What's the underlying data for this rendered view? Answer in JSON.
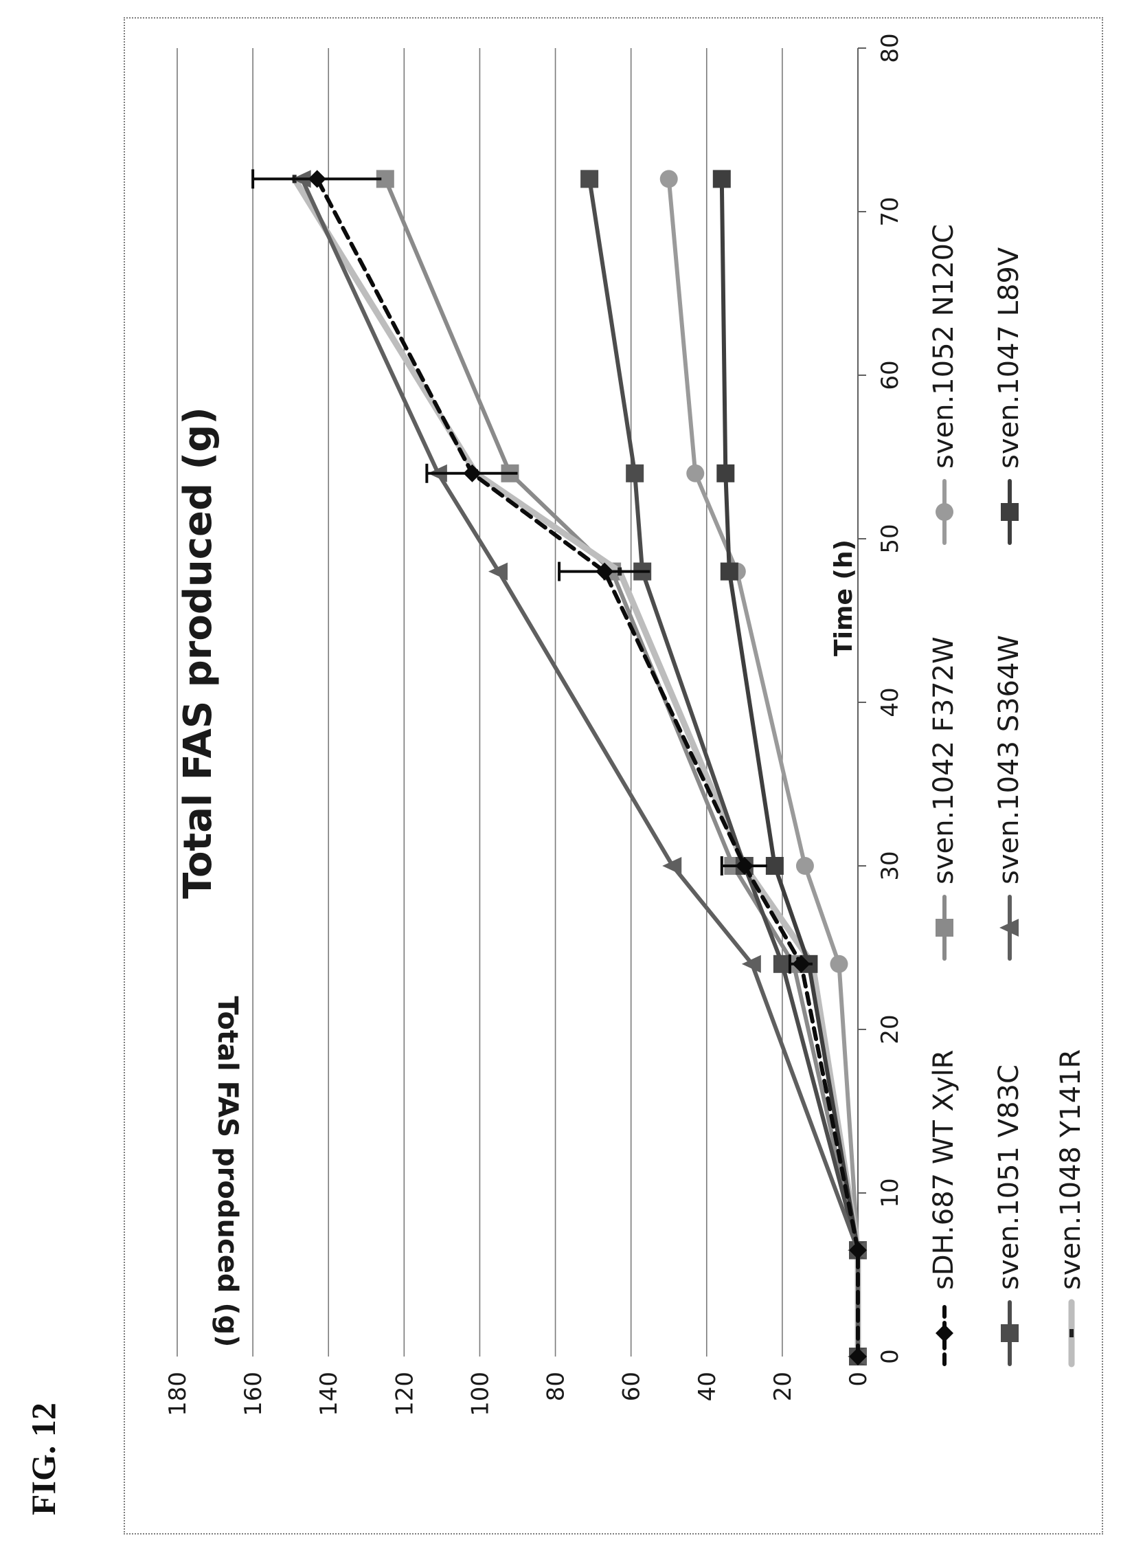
{
  "figure_label": "FIG. 12",
  "colors": {
    "gridline": "#7a7a7a",
    "axis": "#606060",
    "text": "#1a1a1a",
    "wt": "#0b0b0b",
    "v83c": "#4c4c4c",
    "y141r": "#bdbdbd",
    "f372w": "#8a8a8a",
    "s364w": "#5f5f5f",
    "n120c": "#9a9a9a",
    "l89v": "#3e3e3e"
  },
  "chart_data": {
    "type": "line",
    "title": "Total FAS produced (g)",
    "xlabel": "Time (h)",
    "ylabel": "Total FAS produced (g)",
    "xlim": [
      0,
      80
    ],
    "ylim": [
      0,
      180
    ],
    "xticks": [
      "0",
      "10",
      "20",
      "30",
      "40",
      "50",
      "60",
      "70",
      "80"
    ],
    "yticks": [
      "0",
      "20",
      "40",
      "60",
      "80",
      "100",
      "120",
      "140",
      "160",
      "180"
    ],
    "grid": "horizontal",
    "legend_position": "bottom",
    "series": [
      {
        "name": "sDH.687 WT XylR",
        "marker": "diamond",
        "dash": "dashed",
        "color": "#0b0b0b",
        "x": [
          0,
          6.5,
          24,
          30,
          48,
          54,
          72
        ],
        "y": [
          0,
          0,
          15,
          30,
          67,
          102,
          143
        ],
        "error": [
          0,
          0,
          3,
          6,
          12,
          12,
          17
        ]
      },
      {
        "name": "sven.1051 V83C",
        "marker": "square",
        "dash": "solid",
        "color": "#4c4c4c",
        "x": [
          0,
          6.5,
          24,
          30,
          48,
          54,
          72
        ],
        "y": [
          0,
          0,
          20,
          30,
          57,
          59,
          71
        ],
        "error": [
          0,
          0,
          0,
          0,
          0,
          0,
          0
        ]
      },
      {
        "name": "sven.1048 Y141R",
        "marker": "dash",
        "dash": "solid",
        "color": "#bdbdbd",
        "x": [
          0,
          6.5,
          24,
          30,
          48,
          54,
          72
        ],
        "y": [
          0,
          0,
          12,
          30,
          63,
          101,
          149
        ],
        "error": [
          0,
          0,
          0,
          0,
          0,
          0,
          0
        ]
      },
      {
        "name": "sven.1042 F372W",
        "marker": "square",
        "dash": "solid",
        "color": "#8a8a8a",
        "x": [
          0,
          6.5,
          24,
          30,
          48,
          54,
          72
        ],
        "y": [
          0,
          0,
          17,
          33,
          65,
          92,
          125
        ],
        "error": [
          0,
          0,
          0,
          0,
          0,
          0,
          0
        ]
      },
      {
        "name": "sven.1043 S364W",
        "marker": "triangle",
        "dash": "solid",
        "color": "#5f5f5f",
        "x": [
          0,
          6.5,
          24,
          30,
          48,
          54,
          72
        ],
        "y": [
          0,
          0,
          28,
          49,
          95,
          111,
          147
        ],
        "error": [
          0,
          0,
          0,
          0,
          0,
          0,
          0
        ]
      },
      {
        "name": "sven.1052 N120C",
        "marker": "circle",
        "dash": "solid",
        "color": "#9a9a9a",
        "x": [
          0,
          6.5,
          24,
          30,
          48,
          54,
          72
        ],
        "y": [
          0,
          0,
          5,
          14,
          32,
          43,
          50
        ],
        "error": [
          0,
          0,
          0,
          0,
          0,
          0,
          0
        ]
      },
      {
        "name": "sven.1047 L89V",
        "marker": "square",
        "dash": "solid",
        "color": "#3e3e3e",
        "x": [
          0,
          6.5,
          24,
          30,
          48,
          54,
          72
        ],
        "y": [
          0,
          0,
          13,
          22,
          34,
          35,
          36
        ],
        "error": [
          0,
          0,
          0,
          0,
          0,
          0,
          0
        ]
      }
    ]
  }
}
